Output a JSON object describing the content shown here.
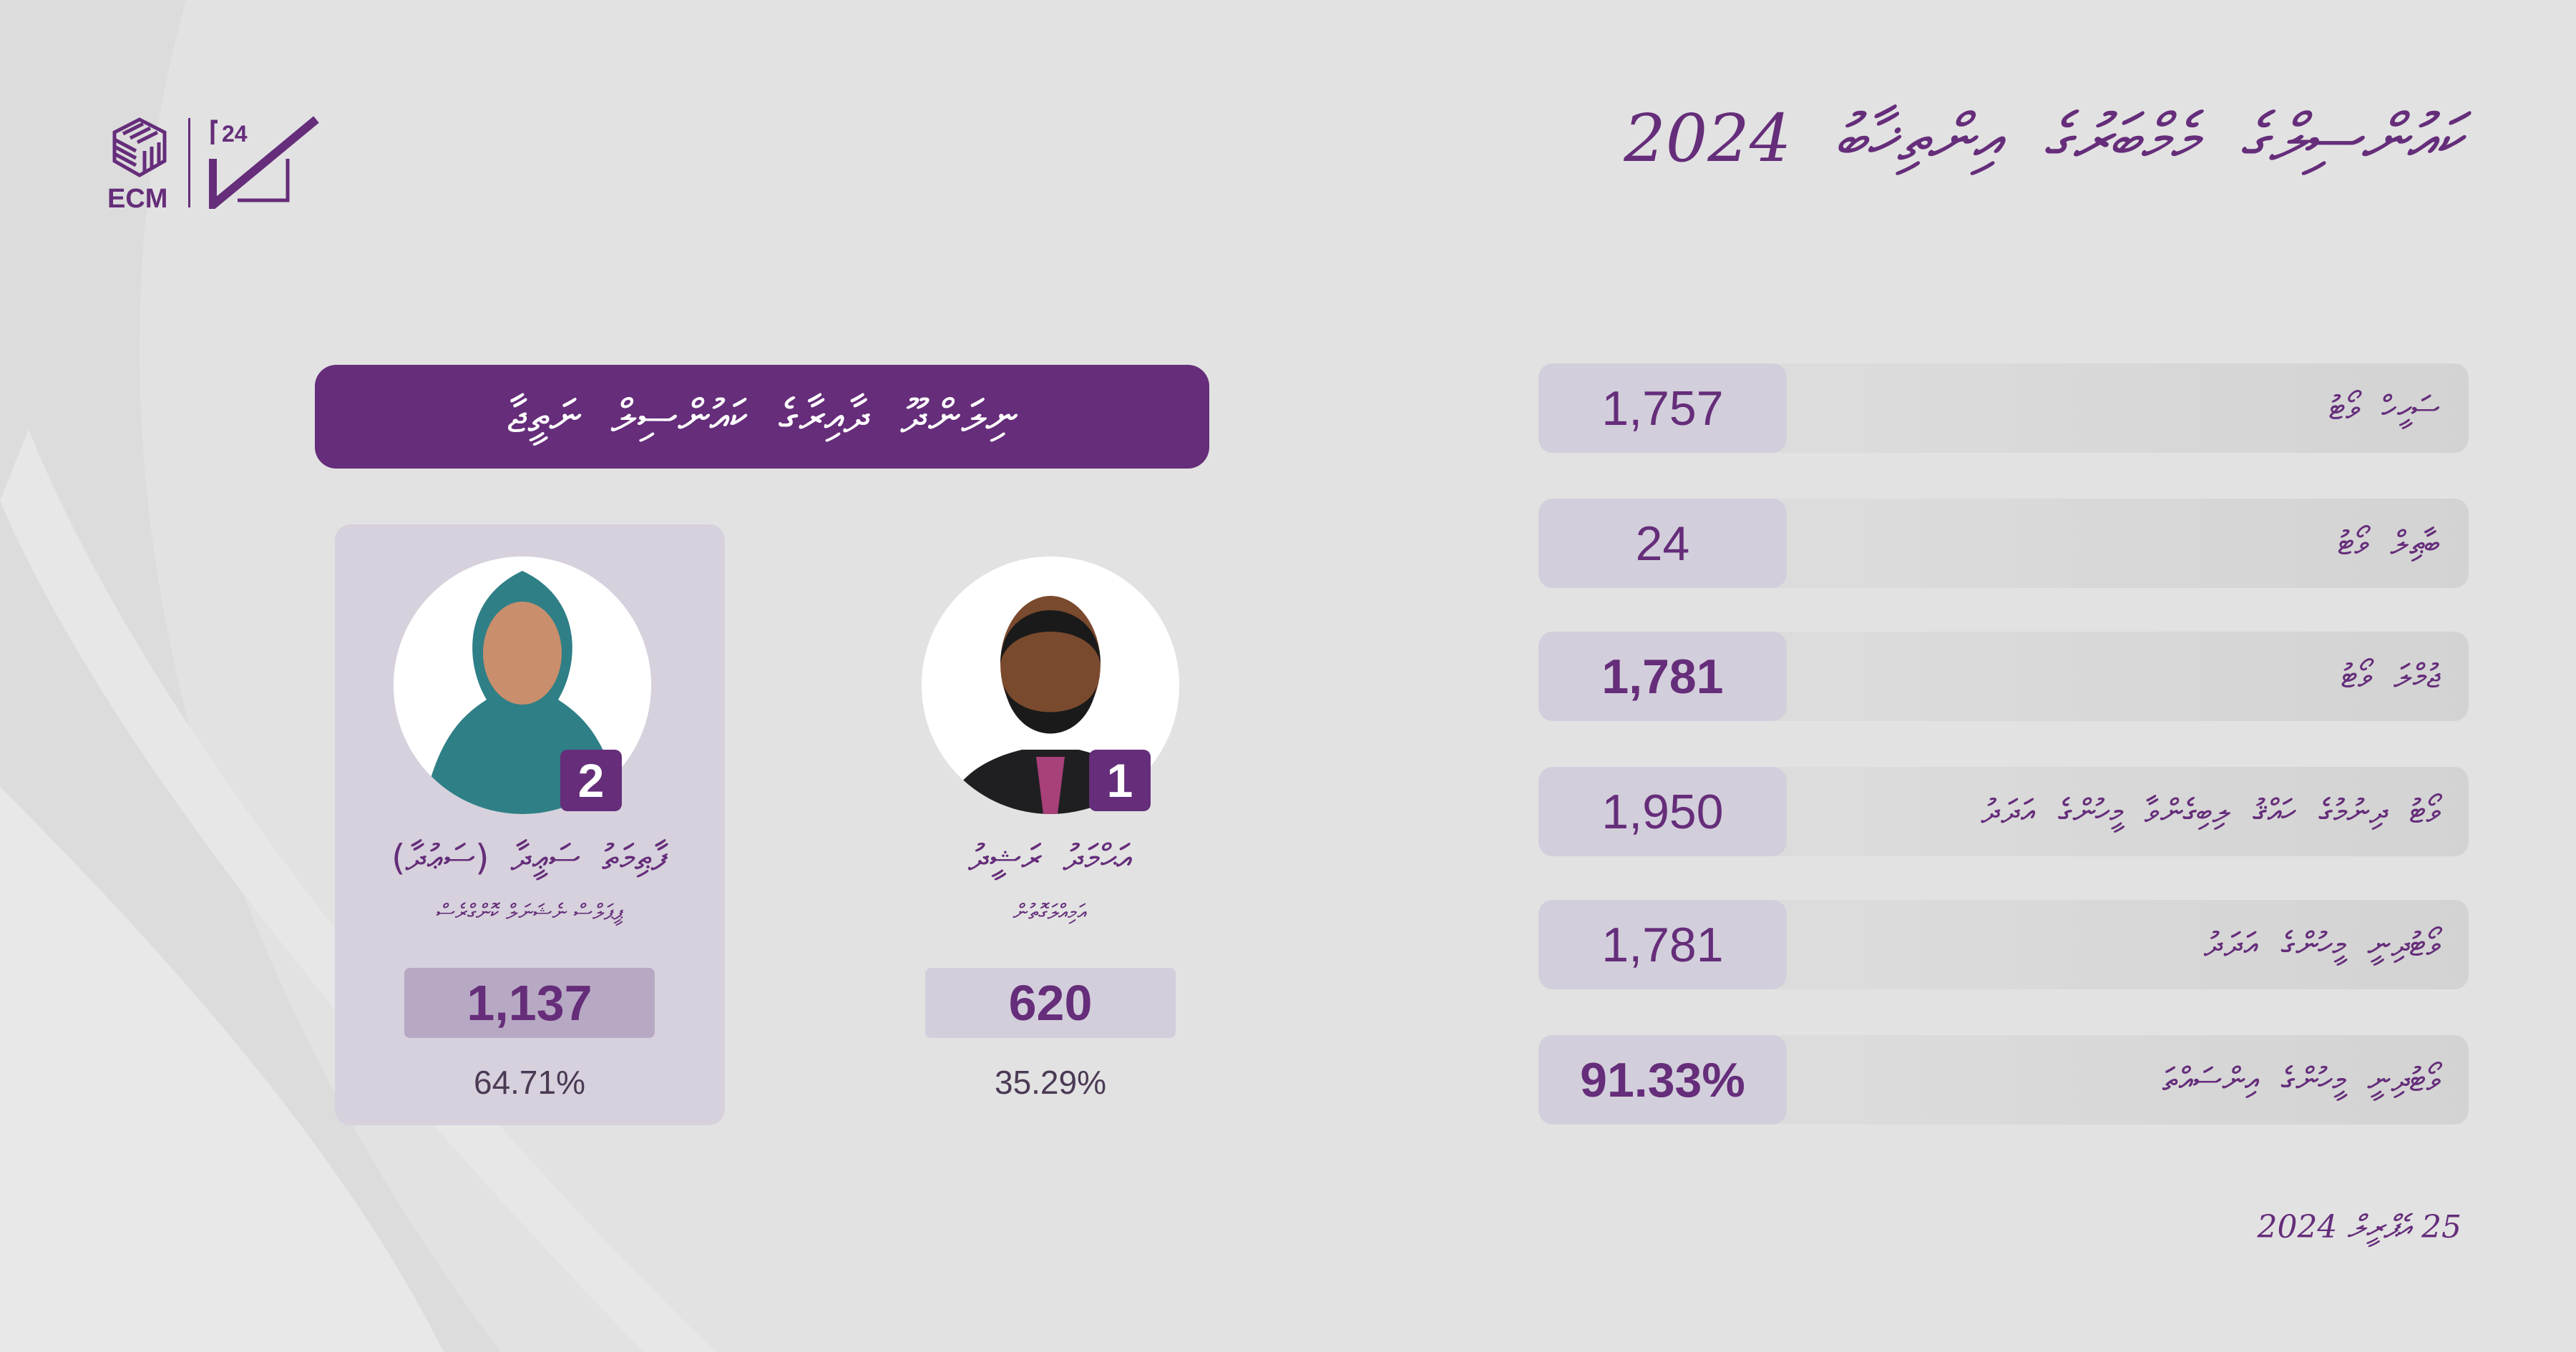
{
  "brand": {
    "logo_text": "ECM",
    "secondary_logo_text": "24",
    "accent_color": "#652d7a"
  },
  "header": {
    "title": "ކައުންސިލްގެ މެމްބަރުގެ އިންތިޚާބު 2024"
  },
  "banner": {
    "title": "ނިލަންދޫ ދާއިރާގެ ކައުންސިލް ނަތީޖާ"
  },
  "candidates": [
    {
      "number": "1",
      "name": "އަޙްމަދު ރަޝީދު",
      "party": "އަމިއްލަގޮތުން",
      "votes": "1,137",
      "percent": "64.71%"
    },
    {
      "number": "2",
      "name": "ފާޠިމަތު ސަޢީދާ (ސަޢުދާ)",
      "party": "ޕީޕަލްސް ނެޝަނަލް ކޮންގްރެސް",
      "votes": "620",
      "percent": "35.29%"
    }
  ],
  "stats": [
    {
      "label": "ސަހީހް ވޯޓު",
      "value": "1,757"
    },
    {
      "label": "ބާޠިލް ވޯޓު",
      "value": "24"
    },
    {
      "label": "ޖުމްލަ ވޯޓު",
      "value": "1,781"
    },
    {
      "label": "ވޯޓު ދިނުމުގެ ހައްޤު ލިބިގެންވާ މީހުންގެ އަދަދު",
      "value": "1,950"
    },
    {
      "label": "ވޯޓުދިނީ މީހުންގެ އަދަދު",
      "value": "1,781"
    },
    {
      "label": "ވޯޓުދިނީ މީހުންގެ އިންސައްތަ",
      "value": "91.33%"
    }
  ],
  "footer": {
    "date": "25 އެޕްރީލް 2024"
  }
}
